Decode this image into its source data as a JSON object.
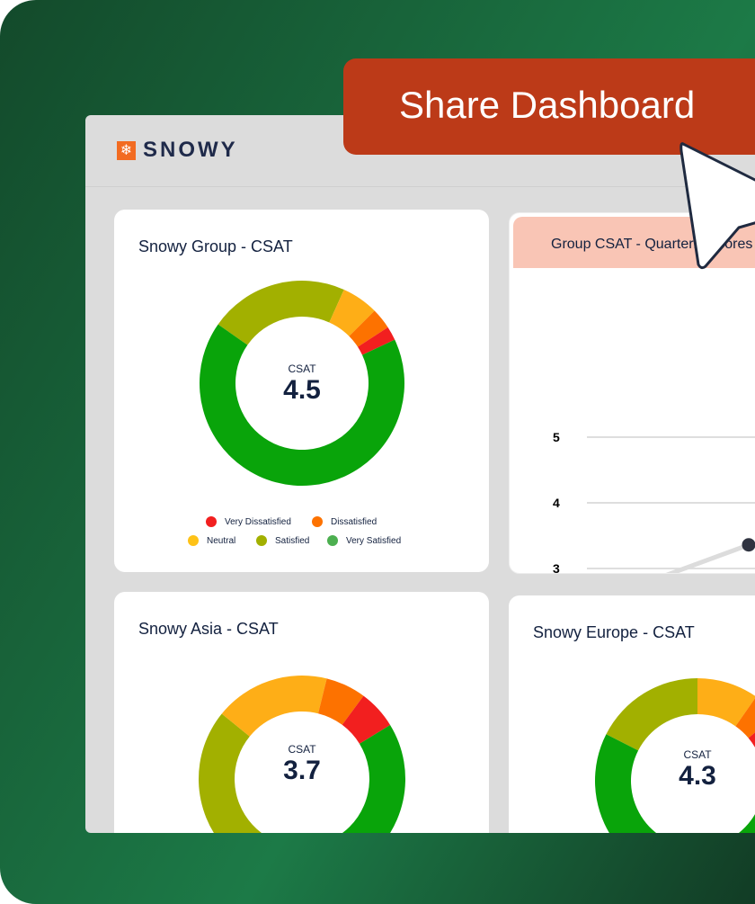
{
  "brand": {
    "name": "SNOWY",
    "icon": "snowflake-icon"
  },
  "share_button": {
    "label": "Share Dashboard"
  },
  "colors": {
    "very_dissatisfied": "#f21f1f",
    "dissatisfied": "#fd7200",
    "neutral": "#feae17",
    "satisfied": "#a2b000",
    "very_satisfied": "#09a40a",
    "accent": "#bc3a18"
  },
  "legend": [
    "Very Dissatisfied",
    "Dissatisfied",
    "Neutral",
    "Satisfied",
    "Very Satisfied"
  ],
  "chart_data": [
    {
      "type": "pie",
      "title": "Snowy Group - CSAT",
      "center_label": "CSAT",
      "center_value": "4.5",
      "categories": [
        "Satisfied",
        "Neutral",
        "Dissatisfied",
        "Very Dissatisfied",
        "Very Satisfied"
      ],
      "values": [
        22,
        5.8,
        3.3,
        2.2,
        66.7
      ]
    },
    {
      "type": "line",
      "title": "Group CSAT - Quarterly Scores",
      "yticks": [
        "5",
        "4",
        "3"
      ],
      "ylim": [
        2,
        5
      ],
      "x": [
        1,
        2
      ],
      "values": [
        2.62,
        3.36
      ],
      "grid": true
    },
    {
      "type": "pie",
      "title": "Snowy Asia - CSAT",
      "center_label": "CSAT",
      "center_value": "3.7",
      "categories": [
        "Satisfied",
        "Neutral",
        "Dissatisfied",
        "Very Dissatisfied",
        "Very Satisfied"
      ],
      "values": [
        45.3,
        18,
        6.3,
        6.1,
        24.3
      ]
    },
    {
      "type": "pie",
      "title": "Snowy Europe - CSAT",
      "center_label": "CSAT",
      "center_value": "4.3",
      "categories": [
        "Satisfied",
        "Neutral",
        "Dissatisfied",
        "Very Dissatisfied",
        "Very Satisfied"
      ],
      "values": [
        17.5,
        9.7,
        4.2,
        2.8,
        65.8
      ]
    }
  ]
}
